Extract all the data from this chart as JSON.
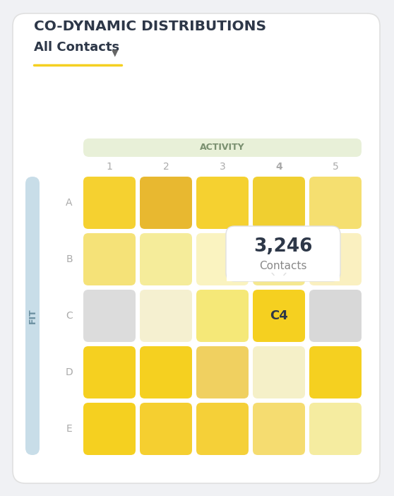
{
  "title": "CO-DYNAMIC DISTRIBUTIONS",
  "subtitle": "All Contacts",
  "activity_label": "ACTIVITY",
  "fit_label": "FIT",
  "col_labels": [
    "1",
    "2",
    "3",
    "4",
    "5"
  ],
  "row_labels": [
    "A",
    "B",
    "C",
    "D",
    "E"
  ],
  "tooltip_label": "C4",
  "tooltip_count": "3,246",
  "tooltip_sub": "Contacts",
  "tooltip_row": 2,
  "tooltip_col": 3,
  "cell_colors": [
    [
      "#F5D130",
      "#E8B830",
      "#F5D130",
      "#F0CF30",
      "#F5DF70"
    ],
    [
      "#F5E278",
      "#F5EC9A",
      "#FAF3C0",
      "#F5E890",
      "#FAF0C0"
    ],
    [
      "#DCDCDC",
      "#F5F0D0",
      "#F5E878",
      "#F5D020",
      "#D8D8D8"
    ],
    [
      "#F5D020",
      "#F5D020",
      "#F0D060",
      "#F5F0C8",
      "#F5D020"
    ],
    [
      "#F5D020",
      "#F5CF30",
      "#F5D038",
      "#F5DC70",
      "#F5ECA0"
    ]
  ],
  "background_color": "#f0f1f4",
  "card_background": "#ffffff",
  "activity_header_color": "#e8f0d8",
  "fit_bar_color": "#c8dde8",
  "underline_color": "#f5d020",
  "activity_text_color": "#7a9070",
  "title_color": "#2d3748",
  "subtitle_color": "#2d3748",
  "col_label_color": "#aaaaaa",
  "row_label_color": "#aaaaaa",
  "fit_text_color": "#6a8fa0",
  "tooltip_bg": "#ffffff",
  "tooltip_border": "#e0e0e0",
  "tooltip_count_color": "#2d3748",
  "tooltip_sub_color": "#888888"
}
